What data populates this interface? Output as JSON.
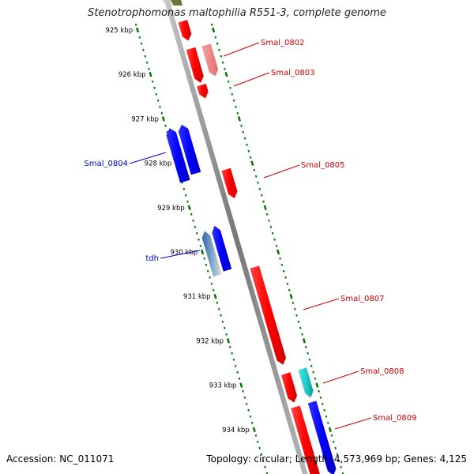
{
  "title": "Stenotrophomonas maltophilia R551-3, complete genome",
  "footer": {
    "accession": "Accession: NC_011071",
    "summary": "Topology: circular; Length: 4,573,969 bp; Genes: 4,125"
  },
  "colors": {
    "forward_gene": "#ff0000",
    "reverse_gene": "#0000ff",
    "tick": "#007700",
    "backbone": "#888888",
    "forward_label": "#cc0000",
    "reverse_label": "#0000cc"
  },
  "kbp_ticks": [
    {
      "kbp": 925,
      "label": "925 kbp"
    },
    {
      "kbp": 926,
      "label": "926 kbp"
    },
    {
      "kbp": 927,
      "label": "927 kbp"
    },
    {
      "kbp": 928,
      "label": "928 kbp"
    },
    {
      "kbp": 929,
      "label": "929 kbp"
    },
    {
      "kbp": 930,
      "label": "930 kbp"
    },
    {
      "kbp": 931,
      "label": "931 kbp"
    },
    {
      "kbp": 932,
      "label": "932 kbp"
    },
    {
      "kbp": 933,
      "label": "933 kbp"
    },
    {
      "kbp": 934,
      "label": "934 kbp"
    }
  ],
  "genes": [
    {
      "label": "",
      "strand": "+",
      "start_kbp": 924.86,
      "end_kbp": 925.3,
      "color": "#ff0000"
    },
    {
      "label": "",
      "strand": "+",
      "start_kbp": 925.48,
      "end_kbp": 926.25,
      "color": "#ff0000"
    },
    {
      "label": "Smal_0802",
      "strand": "+",
      "start_kbp": 925.5,
      "end_kbp": 926.2,
      "color": "#ef8888"
    },
    {
      "label": "Smal_0803",
      "strand": "+",
      "start_kbp": 926.3,
      "end_kbp": 926.6,
      "color": "#ff0000"
    },
    {
      "label": "",
      "strand": "-",
      "start_kbp": 927.0,
      "end_kbp": 928.2,
      "color": "#0000ff"
    },
    {
      "label": "Smal_0804",
      "strand": "-",
      "start_kbp": 927.0,
      "end_kbp": 928.1,
      "color": "#0000ff"
    },
    {
      "label": "Smal_0805",
      "strand": "+",
      "start_kbp": 928.2,
      "end_kbp": 928.85,
      "color": "#ff0000"
    },
    {
      "label": "tdh",
      "strand": "-",
      "start_kbp": 929.35,
      "end_kbp": 930.35,
      "color": "#5588bb"
    },
    {
      "label": "",
      "strand": "-",
      "start_kbp": 929.3,
      "end_kbp": 930.3,
      "color": "#0000ff"
    },
    {
      "label": "Smal_0807",
      "strand": "+",
      "start_kbp": 930.4,
      "end_kbp": 932.6,
      "color": "#ff0000"
    },
    {
      "label": "",
      "strand": "+",
      "start_kbp": 932.8,
      "end_kbp": 933.45,
      "color": "#ff0000"
    },
    {
      "label": "Smal_0808",
      "strand": "+",
      "start_kbp": 932.8,
      "end_kbp": 933.45,
      "color": "#22cccc"
    },
    {
      "label": "",
      "strand": "+",
      "start_kbp": 933.55,
      "end_kbp": 935.2,
      "color": "#ff0000"
    },
    {
      "label": "Smal_0809",
      "strand": "+",
      "start_kbp": 933.55,
      "end_kbp": 935.2,
      "color": "#0000ff"
    }
  ]
}
